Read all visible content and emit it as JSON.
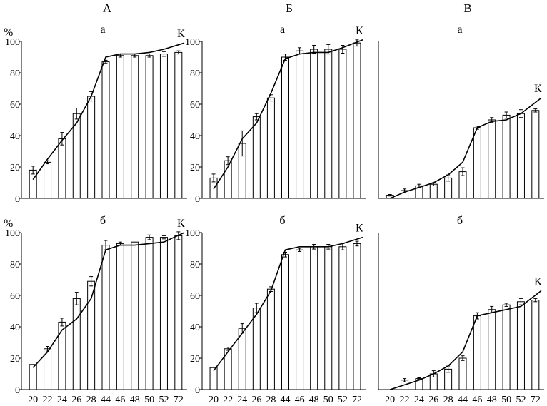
{
  "column_headers": [
    "А",
    "Б",
    "В"
  ],
  "y_unit": "%",
  "chart_data": [
    {
      "type": "bar",
      "column": "А",
      "label": "а",
      "line_label": "К",
      "categories": [
        "20",
        "22",
        "24",
        "26",
        "28",
        "44",
        "46",
        "48",
        "50",
        "52",
        "72"
      ],
      "values": [
        18,
        23,
        38,
        54,
        65,
        87,
        91,
        91,
        91,
        92,
        93
      ],
      "errors": [
        2.5,
        1,
        4,
        3.5,
        3,
        1,
        1,
        1,
        1,
        1.5,
        1
      ],
      "line": [
        12,
        25,
        37,
        48,
        65,
        90,
        92,
        92,
        93,
        95,
        99
      ],
      "ylim": [
        0,
        100
      ],
      "yticks": [
        0,
        20,
        40,
        60,
        80,
        100
      ]
    },
    {
      "type": "bar",
      "column": "Б",
      "label": "а",
      "line_label": "К",
      "categories": [
        "20",
        "22",
        "24",
        "26",
        "28",
        "44",
        "46",
        "48",
        "50",
        "52",
        "72"
      ],
      "values": [
        13,
        24,
        35,
        52,
        64,
        90,
        94,
        95,
        95,
        95,
        99
      ],
      "errors": [
        2.5,
        2.5,
        8,
        2,
        2,
        2,
        2,
        2.5,
        3,
        2.5,
        2
      ],
      "line": [
        6,
        20,
        38,
        48,
        67,
        89,
        92,
        93,
        93,
        96,
        101
      ],
      "ylim": [
        0,
        100
      ],
      "yticks": [
        0,
        20,
        40,
        60,
        80,
        100
      ]
    },
    {
      "type": "bar",
      "column": "В",
      "label": "а",
      "line_label": "К",
      "categories": [
        "20",
        "22",
        "24",
        "26",
        "28",
        "44",
        "46",
        "48",
        "50",
        "52",
        "72"
      ],
      "values": [
        2,
        5,
        8,
        9,
        13,
        17,
        45,
        50,
        53,
        54,
        56
      ],
      "errors": [
        0.5,
        1,
        1,
        1,
        2,
        2.5,
        1,
        1.5,
        2,
        2.5,
        1
      ],
      "line": [
        0,
        4,
        7,
        10,
        15,
        23,
        45,
        49,
        50,
        54,
        64
      ],
      "ylim": [
        0,
        100
      ],
      "yticks": []
    },
    {
      "type": "bar",
      "column": "А",
      "label": "б",
      "line_label": "К",
      "categories": [
        "20",
        "22",
        "24",
        "26",
        "28",
        "44",
        "46",
        "48",
        "50",
        "52",
        "72"
      ],
      "values": [
        16,
        26,
        43,
        58,
        69,
        92,
        93,
        94,
        97,
        97,
        98
      ],
      "errors": [
        0,
        1.5,
        2.5,
        4,
        3,
        3,
        1,
        0,
        1.5,
        1,
        2.5
      ],
      "line": [
        14,
        24,
        38,
        45,
        58,
        89,
        92,
        92,
        93,
        94,
        100
      ],
      "ylim": [
        0,
        100
      ],
      "yticks": [
        0,
        20,
        40,
        60,
        80,
        100
      ]
    },
    {
      "type": "bar",
      "column": "Б",
      "label": "б",
      "line_label": "К",
      "categories": [
        "20",
        "22",
        "24",
        "26",
        "28",
        "44",
        "46",
        "48",
        "50",
        "52",
        "72"
      ],
      "values": [
        14,
        26,
        39,
        52,
        64,
        86,
        89,
        91,
        91,
        91,
        93
      ],
      "errors": [
        0,
        1,
        3,
        3,
        1.5,
        1.5,
        1,
        1.5,
        1.5,
        2,
        1.5
      ],
      "line": [
        12,
        24,
        36,
        48,
        63,
        89,
        91,
        91,
        91,
        93,
        97
      ],
      "ylim": [
        0,
        100
      ],
      "yticks": [
        0,
        20,
        40,
        60,
        80,
        100
      ]
    },
    {
      "type": "bar",
      "column": "В",
      "label": "б",
      "line_label": "К",
      "categories": [
        "20",
        "22",
        "24",
        "26",
        "28",
        "44",
        "46",
        "48",
        "50",
        "52",
        "72"
      ],
      "values": [
        0,
        6,
        7,
        10,
        13,
        20,
        47,
        51,
        54,
        56,
        57
      ],
      "errors": [
        0,
        1,
        0.5,
        2,
        2,
        1.5,
        2,
        2,
        1,
        2,
        1
      ],
      "line": [
        0,
        3,
        6,
        10,
        15,
        24,
        47,
        49,
        51,
        53,
        63
      ],
      "ylim": [
        0,
        100
      ],
      "yticks": []
    }
  ]
}
